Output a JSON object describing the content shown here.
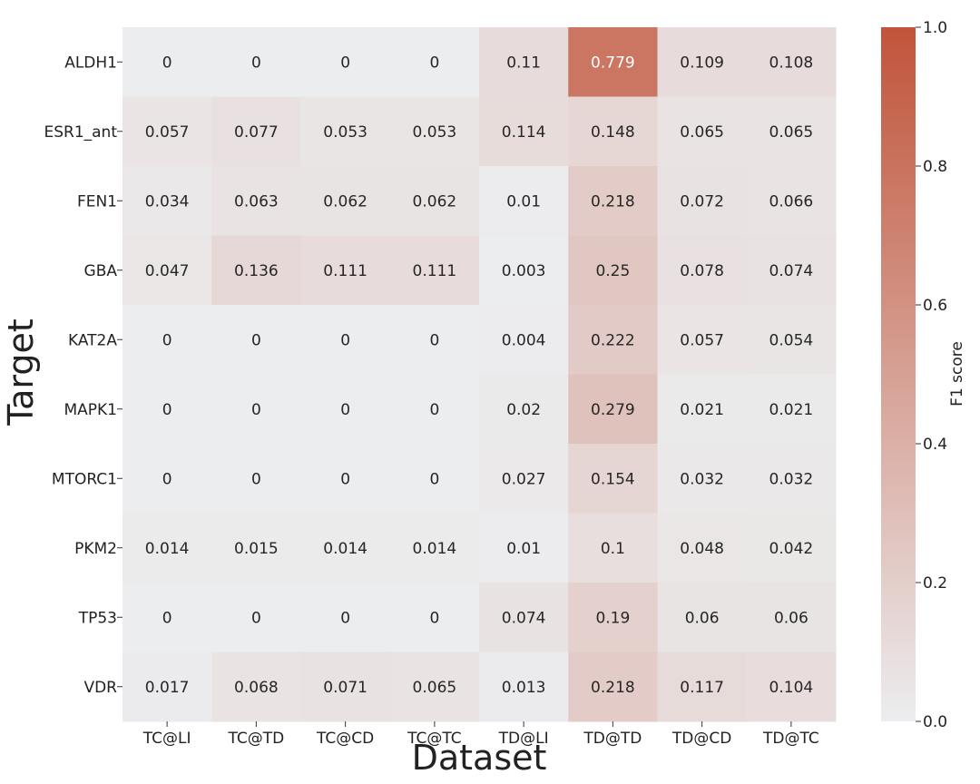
{
  "chart_data": {
    "type": "heatmap",
    "xlabel": "Dataset",
    "ylabel": "Target",
    "colorbar_label": "F1 score",
    "x_categories": [
      "TC@LI",
      "TC@TD",
      "TC@CD",
      "TC@TC",
      "TD@LI",
      "TD@TD",
      "TD@CD",
      "TD@TC"
    ],
    "y_categories": [
      "ALDH1",
      "ESR1_ant",
      "FEN1",
      "GBA",
      "KAT2A",
      "MAPK1",
      "MTORC1",
      "PKM2",
      "TP53",
      "VDR"
    ],
    "values": [
      [
        0,
        0,
        0,
        0,
        0.11,
        0.779,
        0.109,
        0.108
      ],
      [
        0.057,
        0.077,
        0.053,
        0.053,
        0.114,
        0.148,
        0.065,
        0.065
      ],
      [
        0.034,
        0.063,
        0.062,
        0.062,
        0.01,
        0.218,
        0.072,
        0.066
      ],
      [
        0.047,
        0.136,
        0.111,
        0.111,
        0.003,
        0.25,
        0.078,
        0.074
      ],
      [
        0,
        0,
        0,
        0,
        0.004,
        0.222,
        0.057,
        0.054
      ],
      [
        0,
        0,
        0,
        0,
        0.02,
        0.279,
        0.021,
        0.021
      ],
      [
        0,
        0,
        0,
        0,
        0.027,
        0.154,
        0.032,
        0.032
      ],
      [
        0.014,
        0.015,
        0.014,
        0.014,
        0.01,
        0.1,
        0.048,
        0.042
      ],
      [
        0,
        0,
        0,
        0,
        0.074,
        0.19,
        0.06,
        0.06
      ],
      [
        0.017,
        0.068,
        0.071,
        0.065,
        0.013,
        0.218,
        0.117,
        0.104
      ]
    ],
    "value_labels": [
      [
        "0",
        "0",
        "0",
        "0",
        "0.11",
        "0.779",
        "0.109",
        "0.108"
      ],
      [
        "0.057",
        "0.077",
        "0.053",
        "0.053",
        "0.114",
        "0.148",
        "0.065",
        "0.065"
      ],
      [
        "0.034",
        "0.063",
        "0.062",
        "0.062",
        "0.01",
        "0.218",
        "0.072",
        "0.066"
      ],
      [
        "0.047",
        "0.136",
        "0.111",
        "0.111",
        "0.003",
        "0.25",
        "0.078",
        "0.074"
      ],
      [
        "0",
        "0",
        "0",
        "0",
        "0.004",
        "0.222",
        "0.057",
        "0.054"
      ],
      [
        "0",
        "0",
        "0",
        "0",
        "0.02",
        "0.279",
        "0.021",
        "0.021"
      ],
      [
        "0",
        "0",
        "0",
        "0",
        "0.027",
        "0.154",
        "0.032",
        "0.032"
      ],
      [
        "0.014",
        "0.015",
        "0.014",
        "0.014",
        "0.01",
        "0.1",
        "0.048",
        "0.042"
      ],
      [
        "0",
        "0",
        "0",
        "0",
        "0.074",
        "0.19",
        "0.06",
        "0.06"
      ],
      [
        "0.017",
        "0.068",
        "0.071",
        "0.065",
        "0.013",
        "0.218",
        "0.117",
        "0.104"
      ]
    ],
    "vmin": 0,
    "vmax": 1,
    "colorbar_ticks": [
      "0.0",
      "0.2",
      "0.4",
      "0.6",
      "0.8",
      "1.0"
    ],
    "colormap": {
      "low": "#ecedef",
      "high": "#c1543a"
    },
    "grid": false,
    "legend": "colorbar-right"
  }
}
